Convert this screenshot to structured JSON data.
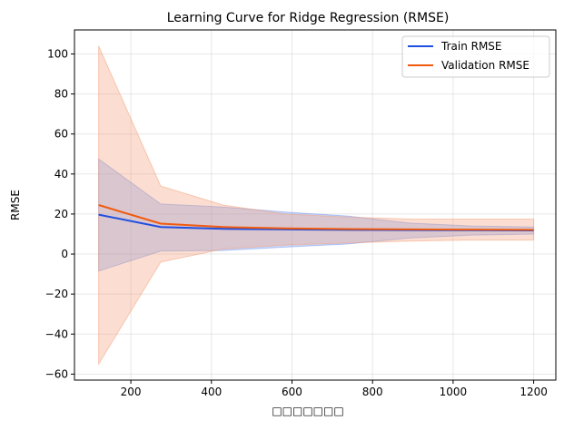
{
  "chart_data": {
    "type": "line",
    "title": "Learning Curve for Ridge Regression (RMSE)",
    "xlabel": "□□□□□□□",
    "ylabel": "RMSE",
    "xlim": [
      60,
      1255
    ],
    "ylim": [
      -63,
      112
    ],
    "xticks": [
      200,
      400,
      600,
      800,
      1000,
      1200
    ],
    "yticks": [
      -60,
      -40,
      -20,
      0,
      20,
      40,
      60,
      80,
      100
    ],
    "grid": true,
    "legend": "top-right",
    "x": [
      120,
      274,
      429,
      583,
      737,
      891,
      1046,
      1200
    ],
    "series": [
      {
        "name": "Train RMSE",
        "color": "#1f4fe0",
        "band_color": "#6f94f0",
        "values": [
          19.7,
          13.5,
          12.6,
          12.3,
          12.1,
          12.0,
          11.9,
          11.8
        ],
        "upper": [
          47.5,
          25.0,
          23.5,
          21.0,
          19.0,
          15.5,
          14.0,
          13.5
        ],
        "lower": [
          -8.5,
          1.5,
          1.8,
          3.5,
          5.0,
          8.0,
          9.5,
          10.0
        ]
      },
      {
        "name": "Validation RMSE",
        "color": "#f05a0f",
        "band_color": "#f4a07a",
        "values": [
          24.5,
          15.2,
          13.5,
          12.8,
          12.5,
          12.3,
          12.2,
          12.1
        ],
        "upper": [
          104,
          34,
          24.5,
          20.0,
          18.5,
          17.5,
          17.5,
          17.5
        ],
        "lower": [
          -55,
          -4,
          2.5,
          4.5,
          5.5,
          6.5,
          7.0,
          7.0
        ]
      }
    ]
  }
}
